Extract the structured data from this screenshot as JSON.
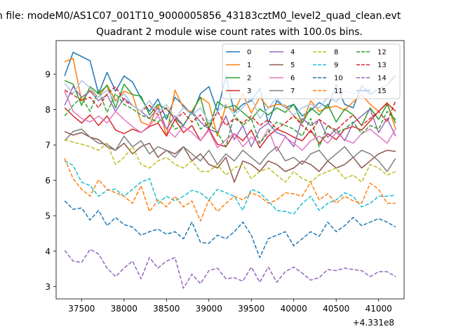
{
  "chart_data": {
    "type": "line",
    "suptitle": "n file: modeM0/AS1C07_001T10_9000005856_43183cztM0_level2_quad_clean.evt",
    "title": "Quadrant 2 module wise count rates with 100.0s bins.",
    "xlabel": "",
    "ylabel": "",
    "x_offset_label": "+4.331e8",
    "xlim": [
      37200,
      41300
    ],
    "ylim": [
      2.65,
      9.95
    ],
    "xticks": [
      37500,
      38000,
      38500,
      39000,
      39500,
      40000,
      40500,
      41000
    ],
    "yticks": [
      3,
      4,
      5,
      6,
      7,
      8,
      9
    ],
    "x_start": 37300,
    "x_step": 100,
    "legend_position": "top-right",
    "legend_columns": 4,
    "grid": false,
    "series": [
      {
        "name": "0",
        "color": "#1f77b4",
        "dash": "solid",
        "values": [
          8.95,
          9.62,
          9.5,
          9.38,
          8.45,
          9.05,
          8.52,
          8.95,
          8.78,
          8.32,
          7.95,
          8.3,
          7.72,
          8.35,
          8.12,
          7.85,
          8.45,
          8.65,
          7.95,
          8.95,
          7.92,
          8.15,
          8.25,
          8.6,
          7.62,
          8.25,
          8.05,
          8.15,
          7.82,
          7.98,
          8.2,
          8.05,
          8.7,
          8.15,
          8.05,
          8.68,
          8.45,
          8.58,
          8.7,
          8.95
        ]
      },
      {
        "name": "1",
        "color": "#ff7f0e",
        "dash": "solid",
        "values": [
          9.35,
          9.45,
          8.25,
          8.55,
          8.35,
          8.7,
          8.25,
          8.52,
          8.42,
          7.65,
          7.55,
          8.15,
          7.25,
          8.55,
          8.05,
          7.92,
          8.35,
          8.18,
          7.25,
          8.12,
          7.95,
          8.45,
          7.9,
          8.35,
          8.05,
          8.15,
          8.12,
          7.82,
          7.62,
          8.25,
          7.95,
          8.05,
          8.1,
          7.98,
          8.22,
          8.42,
          8.15,
          7.95,
          8.2,
          7.45
        ]
      },
      {
        "name": "2",
        "color": "#2ca02c",
        "dash": "solid",
        "values": [
          8.82,
          8.72,
          8.12,
          8.65,
          8.45,
          8.68,
          8.05,
          8.72,
          8.42,
          8.38,
          7.85,
          8.15,
          8.02,
          7.75,
          7.55,
          7.95,
          8.35,
          7.45,
          8.22,
          8.05,
          8.12,
          7.92,
          7.72,
          8.02,
          7.85,
          8.05,
          7.92,
          8.15,
          7.62,
          8.05,
          7.85,
          8.15,
          7.65,
          8.02,
          7.85,
          7.55,
          8.05,
          7.72,
          8.15,
          7.62
        ]
      },
      {
        "name": "3",
        "color": "#d62728",
        "dash": "solid",
        "values": [
          8.05,
          7.82,
          7.62,
          7.85,
          7.55,
          7.82,
          7.42,
          7.32,
          7.45,
          7.35,
          7.52,
          7.62,
          7.25,
          7.72,
          7.35,
          7.55,
          7.12,
          7.45,
          7.02,
          6.95,
          7.32,
          7.12,
          7.42,
          6.92,
          7.25,
          7.45,
          7.35,
          7.22,
          7.12,
          7.42,
          7.05,
          7.32,
          7.15,
          7.45,
          7.52,
          7.42,
          7.68,
          7.95,
          8.18,
          7.95
        ]
      },
      {
        "name": "4",
        "color": "#9467bd",
        "dash": "solid",
        "values": [
          8.12,
          8.65,
          8.35,
          8.52,
          8.25,
          8.42,
          7.95,
          8.32,
          8.12,
          7.95,
          7.75,
          8.05,
          7.45,
          7.82,
          7.55,
          7.95,
          7.65,
          7.45,
          7.35,
          7.82,
          7.15,
          7.55,
          6.95,
          7.45,
          7.62,
          7.35,
          7.25,
          6.95,
          7.75,
          7.55,
          7.72,
          7.22,
          7.45,
          7.12,
          7.62,
          7.82,
          8.02,
          7.35,
          7.75,
          7.25
        ]
      },
      {
        "name": "5",
        "color": "#8c564b",
        "dash": "solid",
        "values": [
          7.38,
          7.28,
          7.35,
          7.22,
          7.15,
          6.95,
          6.85,
          7.05,
          6.75,
          6.95,
          7.05,
          6.65,
          6.85,
          6.75,
          6.95,
          6.55,
          6.75,
          6.45,
          6.35,
          6.65,
          5.95,
          6.55,
          6.45,
          6.25,
          6.55,
          6.45,
          6.25,
          6.35,
          6.55,
          6.45,
          6.25,
          6.55,
          6.35,
          6.45,
          6.65,
          6.35,
          6.55,
          6.75,
          6.85,
          6.82
        ]
      },
      {
        "name": "6",
        "color": "#e377c2",
        "dash": "solid",
        "values": [
          8.52,
          7.95,
          7.75,
          7.65,
          7.82,
          7.62,
          7.95,
          7.72,
          7.52,
          7.35,
          7.55,
          7.82,
          7.45,
          7.22,
          7.52,
          7.35,
          7.12,
          7.42,
          6.92,
          7.15,
          7.32,
          6.95,
          7.22,
          7.05,
          7.45,
          6.82,
          7.22,
          7.05,
          6.85,
          7.12,
          7.25,
          7.05,
          7.35,
          7.15,
          7.05,
          7.32,
          7.45,
          7.25,
          7.05,
          7.45
        ]
      },
      {
        "name": "7",
        "color": "#7f7f7f",
        "dash": "solid",
        "values": [
          7.12,
          7.38,
          7.45,
          7.22,
          7.05,
          7.02,
          6.85,
          7.25,
          6.95,
          7.12,
          6.75,
          6.95,
          6.85,
          6.65,
          6.95,
          6.75,
          6.55,
          6.85,
          6.45,
          6.75,
          6.55,
          6.85,
          6.65,
          6.45,
          6.75,
          6.95,
          6.55,
          6.65,
          6.45,
          6.75,
          6.85,
          6.55,
          6.75,
          6.95,
          6.65,
          6.85,
          6.75,
          6.55,
          6.25,
          6.62
        ]
      },
      {
        "name": "8",
        "color": "#bcbd22",
        "dash": "dashed",
        "values": [
          7.15,
          7.08,
          7.02,
          6.95,
          6.85,
          7.05,
          6.45,
          6.65,
          6.95,
          6.45,
          6.35,
          6.55,
          6.65,
          6.45,
          6.35,
          6.55,
          6.25,
          6.25,
          6.45,
          6.15,
          6.35,
          6.45,
          6.05,
          6.25,
          6.35,
          6.15,
          5.95,
          6.25,
          6.05,
          5.95,
          6.15,
          6.25,
          6.35,
          6.05,
          6.15,
          5.95,
          6.45,
          6.35,
          6.15,
          6.25
        ]
      },
      {
        "name": "9",
        "color": "#17becf",
        "dash": "dashed",
        "values": [
          6.55,
          6.42,
          5.95,
          5.85,
          5.55,
          5.72,
          5.75,
          5.55,
          5.75,
          5.95,
          6.05,
          5.35,
          5.55,
          5.42,
          5.55,
          5.72,
          5.65,
          5.45,
          5.75,
          5.65,
          5.55,
          5.15,
          5.75,
          5.65,
          5.42,
          5.15,
          5.12,
          5.05,
          5.35,
          5.55,
          5.15,
          5.35,
          5.45,
          5.65,
          5.55,
          5.25,
          5.35,
          5.55,
          5.55,
          5.58
        ]
      },
      {
        "name": "10",
        "color": "#1f77b4",
        "dash": "dashed",
        "values": [
          5.42,
          5.18,
          5.22,
          4.88,
          5.15,
          4.72,
          4.95,
          4.75,
          4.68,
          4.45,
          4.55,
          4.62,
          4.48,
          4.55,
          4.35,
          4.82,
          4.25,
          4.22,
          4.45,
          4.35,
          4.55,
          4.82,
          4.45,
          3.82,
          4.35,
          4.45,
          4.55,
          4.15,
          4.35,
          4.55,
          4.42,
          4.82,
          4.55,
          4.72,
          4.95,
          4.72,
          4.82,
          4.92,
          4.82,
          4.68
        ]
      },
      {
        "name": "11",
        "color": "#ff7f0e",
        "dash": "dashed",
        "values": [
          6.62,
          6.05,
          5.75,
          5.55,
          6.02,
          5.75,
          5.65,
          5.55,
          5.35,
          5.85,
          5.12,
          5.45,
          5.25,
          5.55,
          5.25,
          5.42,
          4.85,
          5.45,
          5.12,
          5.35,
          5.55,
          5.45,
          5.65,
          5.55,
          5.35,
          5.45,
          5.65,
          5.62,
          5.55,
          5.95,
          5.45,
          5.62,
          5.35,
          5.55,
          5.42,
          5.35,
          5.92,
          5.75,
          5.35,
          5.35
        ]
      },
      {
        "name": "12",
        "color": "#2ca02c",
        "dash": "dashed",
        "values": [
          7.82,
          8.12,
          8.35,
          7.95,
          8.55,
          7.92,
          8.45,
          8.15,
          8.02,
          7.85,
          7.75,
          7.65,
          7.85,
          7.45,
          7.55,
          7.95,
          7.45,
          7.62,
          7.35,
          6.95,
          7.85,
          7.55,
          7.75,
          7.05,
          7.35,
          7.65,
          7.55,
          7.45,
          7.25,
          7.75,
          6.95,
          7.55,
          7.35,
          7.45,
          7.65,
          7.32,
          7.55,
          7.45,
          7.95,
          7.72
        ]
      },
      {
        "name": "13",
        "color": "#d62728",
        "dash": "dashed",
        "values": [
          8.55,
          8.42,
          8.25,
          8.35,
          8.05,
          8.45,
          8.65,
          8.25,
          8.12,
          7.95,
          8.12,
          7.85,
          8.05,
          7.72,
          7.92,
          7.65,
          7.85,
          7.45,
          7.95,
          7.55,
          7.75,
          7.62,
          7.82,
          7.55,
          7.72,
          7.45,
          7.62,
          7.82,
          7.55,
          7.35,
          7.72,
          7.55,
          7.42,
          7.65,
          7.85,
          7.55,
          7.75,
          7.95,
          7.65,
          8.25
        ]
      },
      {
        "name": "14",
        "color": "#9467bd",
        "dash": "dashed",
        "values": [
          4.02,
          3.72,
          3.68,
          4.05,
          3.92,
          3.52,
          3.28,
          3.52,
          3.72,
          3.22,
          3.82,
          3.52,
          3.72,
          3.82,
          2.95,
          3.35,
          3.08,
          3.45,
          3.52,
          3.22,
          3.25,
          3.15,
          3.55,
          3.12,
          3.55,
          3.12,
          3.42,
          3.55,
          3.38,
          3.18,
          3.25,
          3.48,
          3.45,
          3.52,
          3.48,
          3.45,
          3.28,
          3.42,
          3.42,
          3.28
        ]
      },
      {
        "name": "15",
        "color": "#aec7e8",
        "dash": "solid",
        "values": [
          8.75,
          8.45,
          8.82,
          8.62,
          8.35,
          8.55,
          8.22,
          8.45,
          8.12,
          7.95,
          8.25,
          7.92,
          8.15,
          7.75,
          8.05,
          7.85,
          8.05,
          7.65,
          7.95,
          8.15,
          7.85,
          8.05,
          8.35,
          7.75,
          8.05,
          8.32,
          8.05,
          7.85,
          8.05,
          8.15,
          8.05,
          8.35,
          8.22,
          8.52,
          8.45,
          8.55,
          8.42,
          8.48,
          8.72,
          9.02
        ]
      }
    ]
  }
}
